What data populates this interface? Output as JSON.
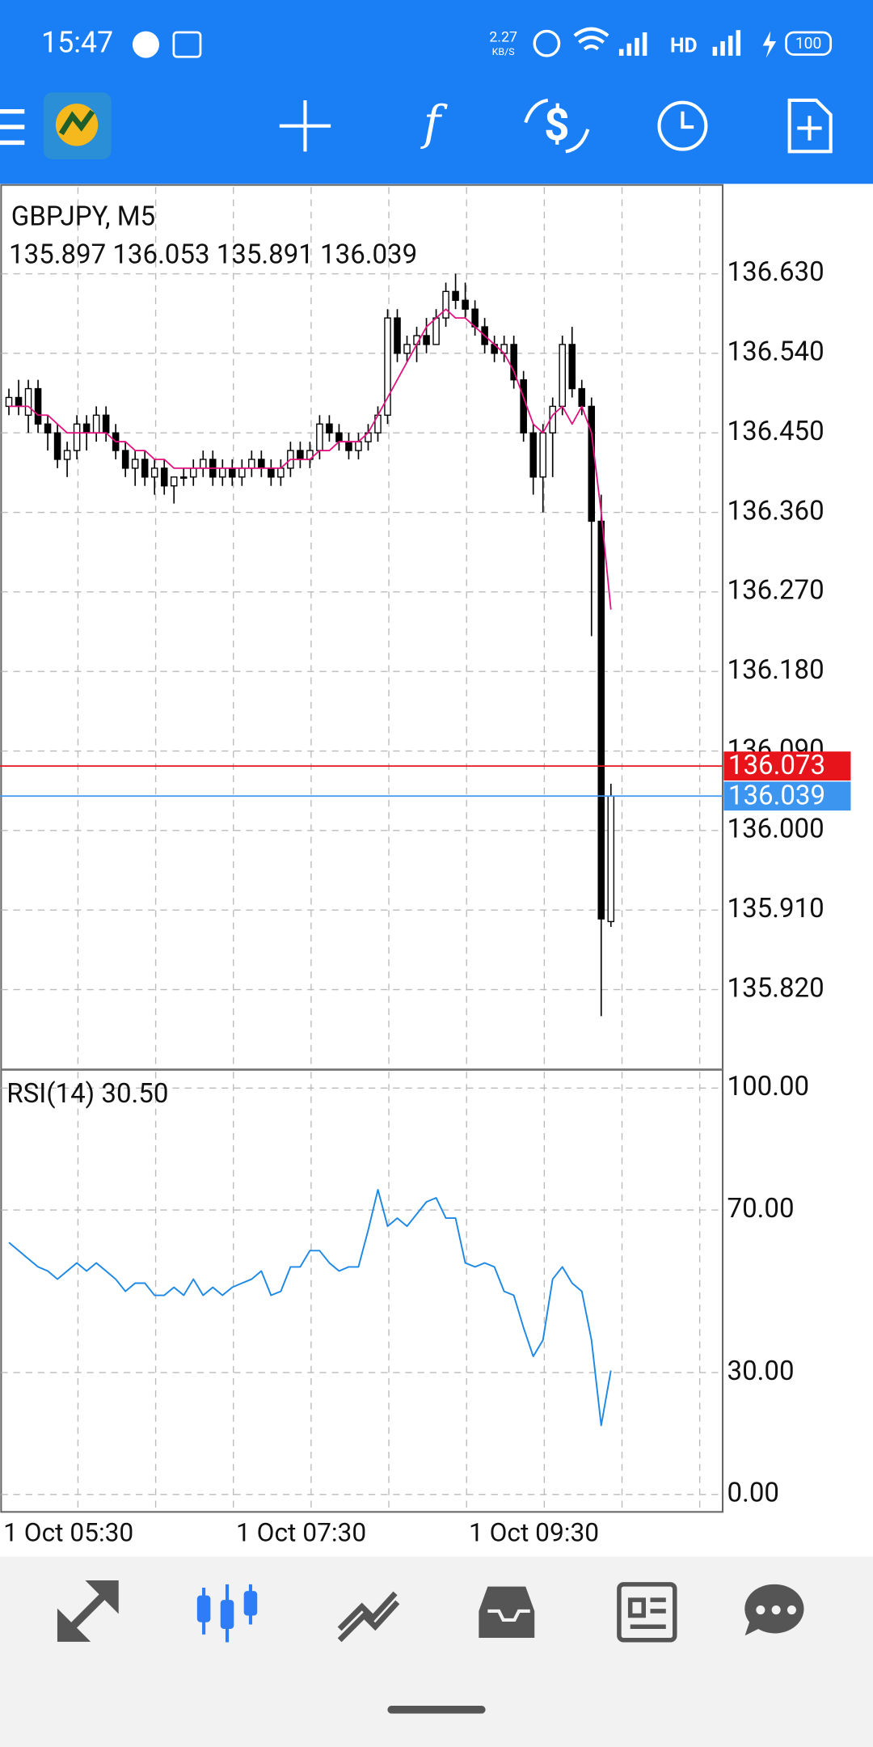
{
  "status_bar": {
    "time": "15:47",
    "net_speed": "2.27",
    "net_unit": "KB/S",
    "battery": "100"
  },
  "chart_data": [
    {
      "type": "candlestick",
      "title": "GBPJPY, M5",
      "subtitle": "135.897 136.053 135.891 136.039",
      "candles": [
        [
          136.48,
          136.5,
          136.47,
          136.49
        ],
        [
          136.49,
          136.51,
          136.47,
          136.48
        ],
        [
          136.47,
          136.51,
          136.45,
          136.5
        ],
        [
          136.5,
          136.51,
          136.45,
          136.46
        ],
        [
          136.46,
          136.47,
          136.43,
          136.45
        ],
        [
          136.45,
          136.46,
          136.41,
          136.42
        ],
        [
          136.42,
          136.44,
          136.4,
          136.43
        ],
        [
          136.43,
          136.47,
          136.42,
          136.46
        ],
        [
          136.46,
          136.47,
          136.43,
          136.45
        ],
        [
          136.45,
          136.48,
          136.44,
          136.47
        ],
        [
          136.47,
          136.48,
          136.44,
          136.45
        ],
        [
          136.45,
          136.46,
          136.42,
          136.43
        ],
        [
          136.43,
          136.44,
          136.4,
          136.41
        ],
        [
          136.41,
          136.43,
          136.39,
          136.42
        ],
        [
          136.42,
          136.43,
          136.39,
          136.4
        ],
        [
          136.4,
          136.42,
          136.38,
          136.41
        ],
        [
          136.41,
          136.42,
          136.38,
          136.39
        ],
        [
          136.39,
          136.4,
          136.37,
          136.4
        ],
        [
          136.4,
          136.41,
          136.39,
          136.4
        ],
        [
          136.4,
          136.42,
          136.39,
          136.41
        ],
        [
          136.41,
          136.43,
          136.4,
          136.42
        ],
        [
          136.42,
          136.43,
          136.39,
          136.4
        ],
        [
          136.4,
          136.42,
          136.39,
          136.41
        ],
        [
          136.41,
          136.42,
          136.39,
          136.4
        ],
        [
          136.4,
          136.42,
          136.39,
          136.41
        ],
        [
          136.41,
          136.43,
          136.4,
          136.42
        ],
        [
          136.42,
          136.43,
          136.4,
          136.41
        ],
        [
          136.41,
          136.42,
          136.39,
          136.4
        ],
        [
          136.4,
          136.42,
          136.39,
          136.41
        ],
        [
          136.41,
          136.44,
          136.4,
          136.43
        ],
        [
          136.43,
          136.44,
          136.41,
          136.42
        ],
        [
          136.42,
          136.44,
          136.41,
          136.43
        ],
        [
          136.43,
          136.47,
          136.42,
          136.46
        ],
        [
          136.46,
          136.47,
          136.44,
          136.45
        ],
        [
          136.45,
          136.46,
          136.43,
          136.44
        ],
        [
          136.44,
          136.45,
          136.42,
          136.43
        ],
        [
          136.43,
          136.45,
          136.42,
          136.44
        ],
        [
          136.44,
          136.46,
          136.43,
          136.45
        ],
        [
          136.45,
          136.48,
          136.44,
          136.47
        ],
        [
          136.47,
          136.59,
          136.46,
          136.58
        ],
        [
          136.58,
          136.59,
          136.53,
          136.54
        ],
        [
          136.54,
          136.56,
          136.53,
          136.55
        ],
        [
          136.55,
          136.57,
          136.53,
          136.56
        ],
        [
          136.56,
          136.58,
          136.54,
          136.55
        ],
        [
          136.55,
          136.59,
          136.55,
          136.58
        ],
        [
          136.58,
          136.62,
          136.57,
          136.61
        ],
        [
          136.61,
          136.63,
          136.59,
          136.6
        ],
        [
          136.6,
          136.62,
          136.58,
          136.59
        ],
        [
          136.59,
          136.6,
          136.56,
          136.57
        ],
        [
          136.57,
          136.58,
          136.54,
          136.55
        ],
        [
          136.55,
          136.56,
          136.53,
          136.54
        ],
        [
          136.54,
          136.56,
          136.53,
          136.55
        ],
        [
          136.55,
          136.56,
          136.5,
          136.51
        ],
        [
          136.51,
          136.52,
          136.44,
          136.45
        ],
        [
          136.45,
          136.46,
          136.38,
          136.4
        ],
        [
          136.4,
          136.46,
          136.36,
          136.45
        ],
        [
          136.45,
          136.49,
          136.4,
          136.48
        ],
        [
          136.48,
          136.56,
          136.47,
          136.55
        ],
        [
          136.55,
          136.57,
          136.49,
          136.5
        ],
        [
          136.5,
          136.51,
          136.47,
          136.48
        ],
        [
          136.48,
          136.49,
          136.22,
          136.35
        ],
        [
          136.35,
          136.38,
          135.79,
          135.9
        ],
        [
          135.897,
          136.053,
          135.891,
          136.039
        ]
      ],
      "series": [
        {
          "color": "#e0137f",
          "values": [
            136.48,
            136.48,
            136.48,
            136.47,
            136.47,
            136.46,
            136.45,
            136.45,
            136.45,
            136.45,
            136.45,
            136.44,
            136.44,
            136.43,
            136.43,
            136.42,
            136.42,
            136.41,
            136.41,
            136.41,
            136.41,
            136.41,
            136.41,
            136.41,
            136.41,
            136.41,
            136.41,
            136.41,
            136.41,
            136.42,
            136.42,
            136.42,
            136.43,
            136.43,
            136.44,
            136.44,
            136.44,
            136.45,
            136.47,
            136.49,
            136.51,
            136.53,
            136.55,
            136.57,
            136.58,
            136.59,
            136.58,
            136.58,
            136.57,
            136.56,
            136.55,
            136.54,
            136.52,
            136.49,
            136.46,
            136.45,
            136.47,
            136.48,
            136.46,
            136.48,
            136.45,
            136.36,
            136.25
          ]
        }
      ],
      "ylim": [
        135.732,
        136.728
      ],
      "yticks": [
        {
          "value": 135.82,
          "label": "135.820"
        },
        {
          "value": 135.91,
          "label": "135.910"
        },
        {
          "value": 136.0,
          "label": "136.000"
        },
        {
          "value": 136.09,
          "label": "136.090"
        },
        {
          "value": 136.18,
          "label": "136.180"
        },
        {
          "value": 136.27,
          "label": "136.270"
        },
        {
          "value": 136.36,
          "label": "136.360"
        },
        {
          "value": 136.45,
          "label": "136.450"
        },
        {
          "value": 136.54,
          "label": "136.540"
        },
        {
          "value": 136.63,
          "label": "136.630"
        }
      ],
      "price_lines": [
        {
          "value": 136.073,
          "label": "136.073",
          "color": "#e8141c"
        },
        {
          "value": 136.039,
          "label": "136.039",
          "color": "#3c96f0"
        }
      ],
      "grid": true
    },
    {
      "type": "line",
      "title": "RSI(14) 30.50",
      "series": [
        {
          "color": "#1e88e5",
          "values": [
            62,
            60,
            58,
            56,
            55,
            53,
            55,
            57,
            55,
            57,
            55,
            53,
            50,
            52,
            52,
            49,
            49,
            51,
            49,
            53,
            49,
            51,
            49,
            51,
            52,
            53,
            55,
            49,
            50,
            56,
            56,
            60,
            60,
            57,
            55,
            56,
            56,
            65,
            75,
            66,
            68,
            66,
            69,
            72,
            73,
            68,
            68,
            57,
            56,
            57,
            56,
            50,
            49,
            41,
            34,
            38,
            53,
            56,
            52,
            50,
            38,
            17,
            30.5
          ]
        }
      ],
      "ylim": [
        -4,
        104
      ],
      "yticks": [
        {
          "value": 0,
          "label": "0.00"
        },
        {
          "value": 30,
          "label": "30.00"
        },
        {
          "value": 70,
          "label": "70.00"
        },
        {
          "value": 100,
          "label": "100.00"
        }
      ],
      "x_labels": [
        "1 Oct 05:30",
        "1 Oct 07:30",
        "1 Oct 09:30"
      ],
      "grid": true
    }
  ]
}
